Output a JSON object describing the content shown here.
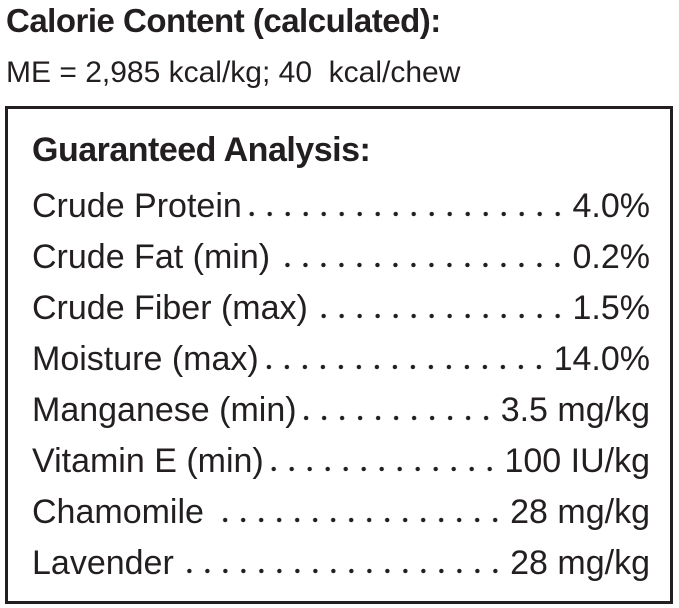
{
  "header": {
    "title": "Calorie Content (calculated):",
    "subtitle": "ME = 2,985 kcal/kg; 40  kcal/chew"
  },
  "analysis": {
    "title": "Guaranteed Analysis:",
    "rows": [
      [
        "Crude Protein",
        "4.0%"
      ],
      [
        "Crude Fat (min)",
        "0.2%"
      ],
      [
        "Crude Fiber (max)",
        "1.5%"
      ],
      [
        "Moisture (max)",
        "14.0%"
      ],
      [
        "Manganese (min)",
        "3.5 mg/kg"
      ],
      [
        "Vitamin E (min)",
        "100 IU/kg"
      ],
      [
        "Chamomile",
        "28 mg/kg"
      ],
      [
        "Lavender",
        "28 mg/kg"
      ]
    ]
  }
}
